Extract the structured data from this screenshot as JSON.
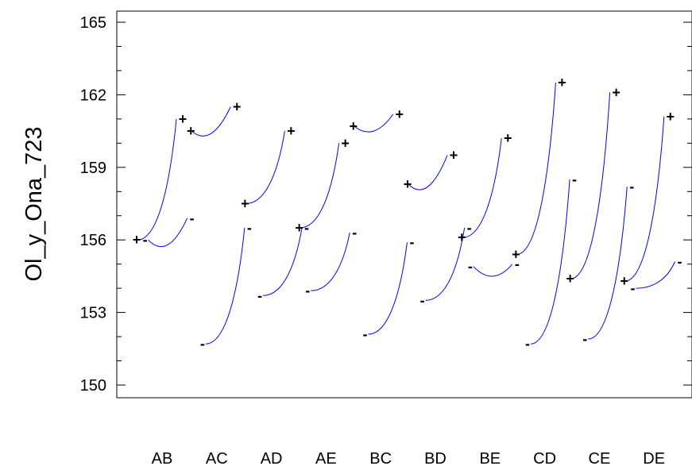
{
  "chart_data": {
    "type": "line",
    "title": "",
    "xlabel": "",
    "ylabel": "Ol_y_Ona_723",
    "ylim": [
      150,
      165
    ],
    "yticks": [
      150,
      153,
      156,
      159,
      162,
      165
    ],
    "categories": [
      "AB",
      "AC",
      "AD",
      "AE",
      "BC",
      "BD",
      "BE",
      "CD",
      "CE",
      "DE"
    ],
    "grid": false,
    "line_color": "#0000ff",
    "factor_pairs": [
      {
        "category": "AB",
        "minus": {
          "start": 156.0,
          "end": 156.9,
          "dip": 155.8
        },
        "plus": {
          "start": 156.0,
          "end": 161.0
        }
      },
      {
        "category": "AC",
        "minus": {
          "start": 151.7,
          "end": 156.5
        },
        "plus": {
          "start": 160.5,
          "end": 161.5,
          "dip": 160.4
        }
      },
      {
        "category": "AD",
        "minus": {
          "start": 153.7,
          "end": 156.5
        },
        "plus": {
          "start": 157.5,
          "end": 160.5
        }
      },
      {
        "category": "AE",
        "minus": {
          "start": 153.9,
          "end": 156.3
        },
        "plus": {
          "start": 156.5,
          "end": 160.0
        }
      },
      {
        "category": "BC",
        "minus": {
          "start": 152.1,
          "end": 155.9
        },
        "plus": {
          "start": 160.7,
          "end": 161.2,
          "dip": 160.5
        }
      },
      {
        "category": "BD",
        "minus": {
          "start": 153.5,
          "end": 156.5
        },
        "plus": {
          "start": 158.3,
          "end": 159.5,
          "dip": 158.2
        }
      },
      {
        "category": "BE",
        "minus": {
          "start": 154.9,
          "end": 155.0,
          "dip": 154.5
        },
        "plus": {
          "start": 156.1,
          "end": 160.2
        }
      },
      {
        "category": "CD",
        "minus": {
          "start": 151.7,
          "end": 158.5
        },
        "plus": {
          "start": 155.4,
          "end": 162.5
        }
      },
      {
        "category": "CE",
        "minus": {
          "start": 151.9,
          "end": 158.2
        },
        "plus": {
          "start": 154.4,
          "end": 162.1
        }
      },
      {
        "category": "DE",
        "minus": {
          "start": 154.0,
          "end": 155.1
        },
        "plus": {
          "start": 154.3,
          "end": 161.1
        }
      }
    ]
  },
  "symbols": {
    "plus": "+",
    "minus": "-"
  }
}
